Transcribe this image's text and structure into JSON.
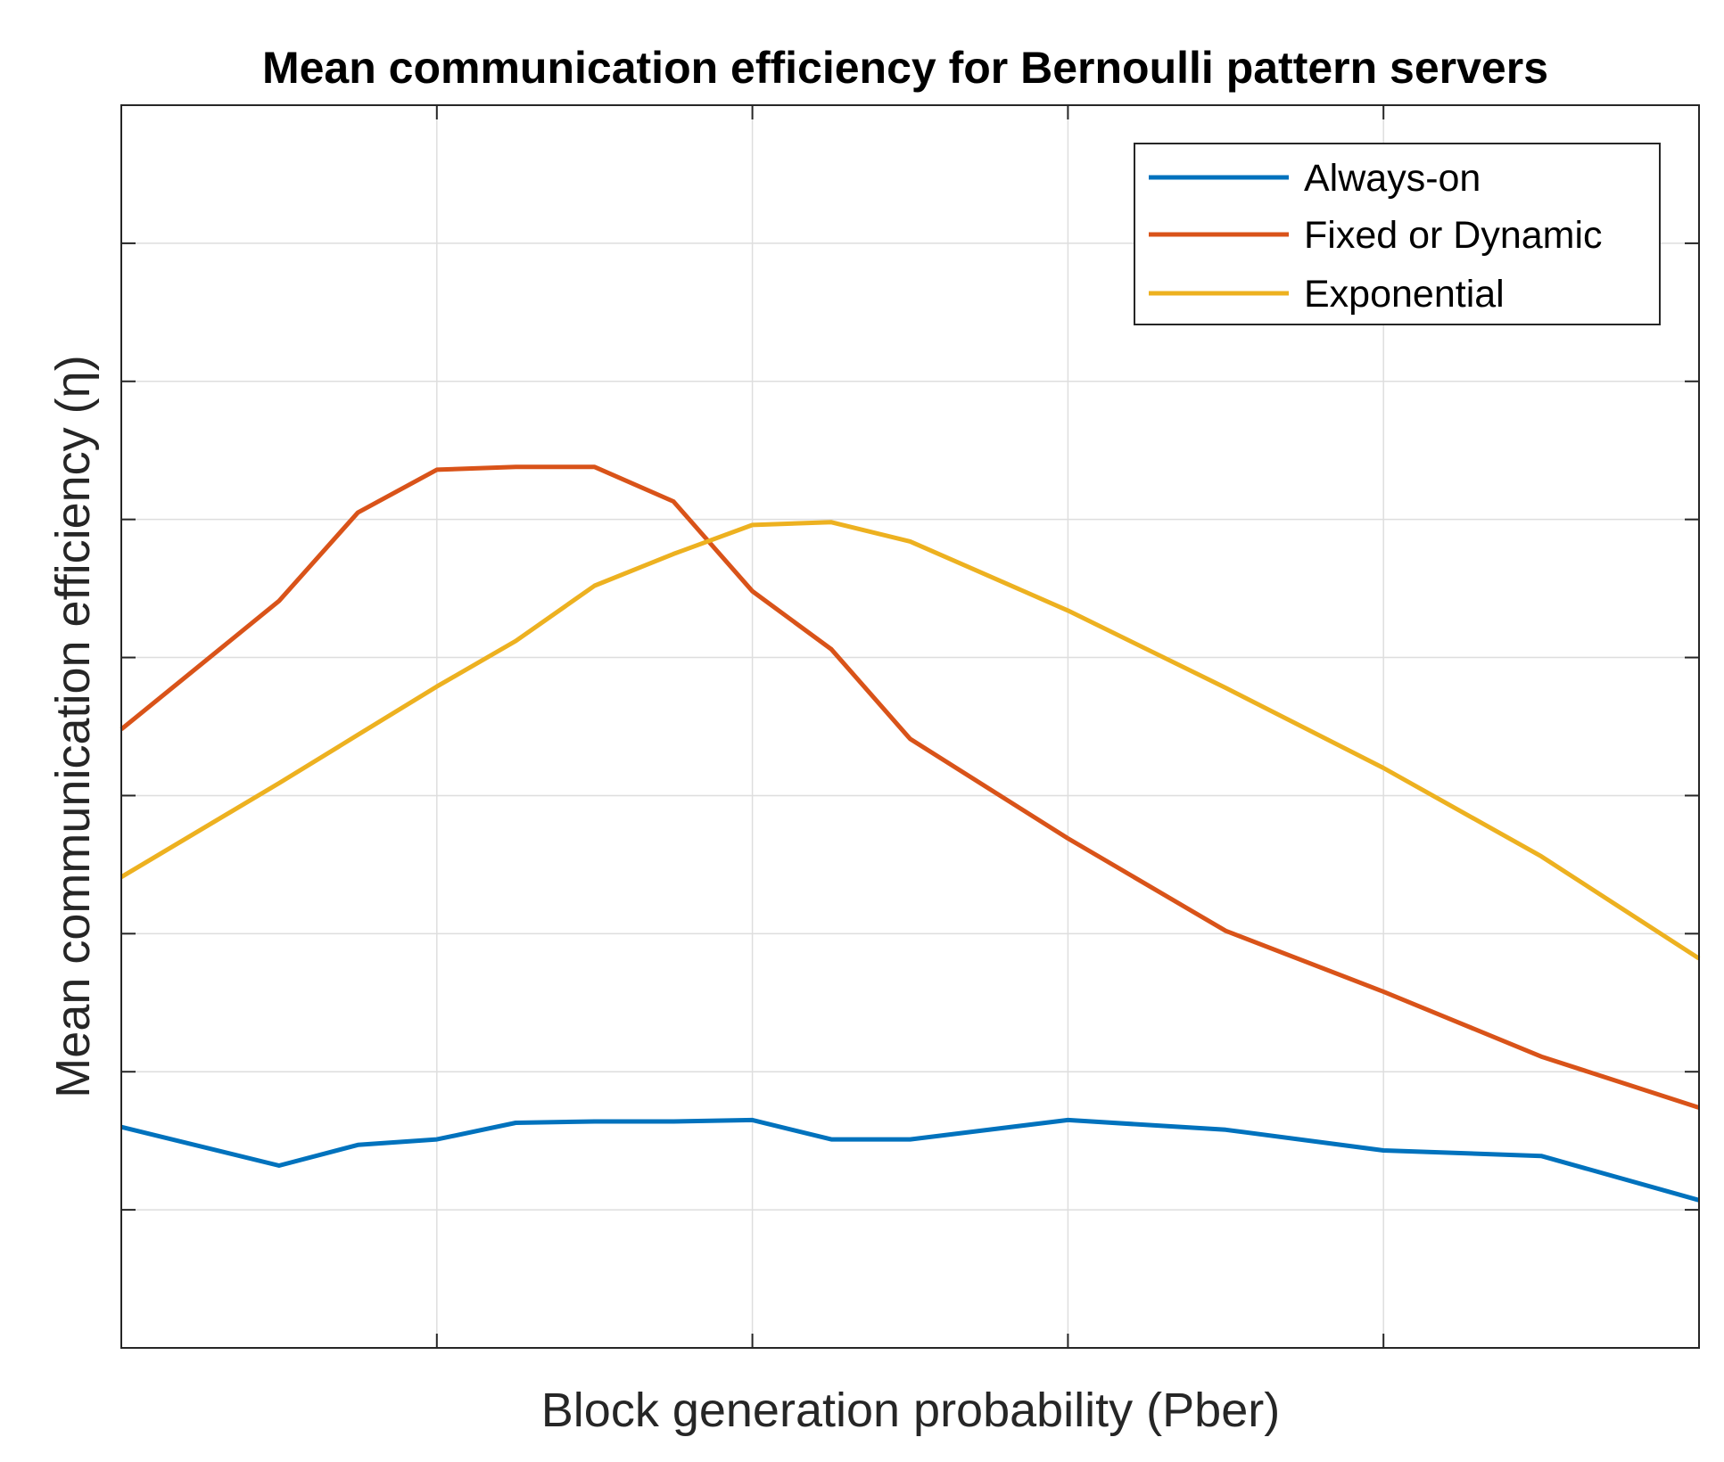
{
  "chart_data": {
    "type": "line",
    "title": "Mean communication efficiency for Bernoulli pattern servers",
    "xlabel": "Block generation probability (Pber)",
    "ylabel": "Mean communication efficiency (η)",
    "xlim": [
      0,
      20
    ],
    "ylim": [
      0,
      9
    ],
    "x": [
      0,
      2,
      3,
      4,
      5,
      6,
      7,
      8,
      9,
      10,
      12,
      14,
      16,
      18,
      20
    ],
    "series": [
      {
        "name": "Always-on",
        "color": "#0072BD",
        "values": [
          1.6,
          1.32,
          1.47,
          1.51,
          1.63,
          1.64,
          1.64,
          1.65,
          1.51,
          1.51,
          1.65,
          1.58,
          1.43,
          1.39,
          1.07
        ]
      },
      {
        "name": "Fixed or Dynamic",
        "color": "#D95319",
        "values": [
          4.48,
          5.41,
          6.05,
          6.36,
          6.38,
          6.38,
          6.13,
          5.48,
          5.06,
          4.41,
          3.69,
          3.02,
          2.58,
          2.11,
          1.74
        ]
      },
      {
        "name": "Exponential",
        "color": "#EDB120",
        "values": [
          3.41,
          4.09,
          4.44,
          4.79,
          5.12,
          5.52,
          5.75,
          5.96,
          5.98,
          5.84,
          5.34,
          4.78,
          4.2,
          3.56,
          2.82
        ]
      }
    ],
    "x_ticks": [
      0,
      4,
      8,
      12,
      16,
      20
    ],
    "y_ticks": [
      0,
      1,
      2,
      3,
      4,
      5,
      6,
      7,
      8,
      9
    ],
    "grid": true,
    "legend_position": "top-right"
  }
}
